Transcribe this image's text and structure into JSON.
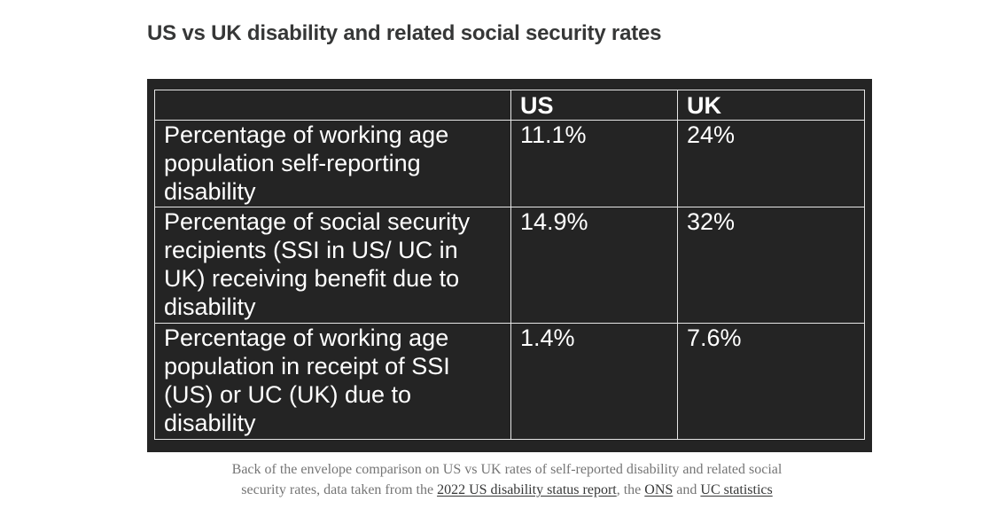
{
  "heading": "US vs UK disability and related social security rates",
  "table": {
    "headers": [
      "",
      "US",
      "UK"
    ],
    "rows": [
      {
        "label": "Percentage of working age population self-reporting disability",
        "us": "11.1%",
        "uk": "24%"
      },
      {
        "label": "Percentage of social security recipients (SSI in US/ UC in UK) receiving benefit due to disability",
        "us": "14.9%",
        "uk": "32%"
      },
      {
        "label": "Percentage of working age population in receipt of SSI (US) or UC (UK) due to disability",
        "us": "1.4%",
        "uk": "7.6%"
      }
    ]
  },
  "caption": {
    "text_before": "Back of the envelope comparison on US vs UK rates of self-reported disability and related social security rates, data taken from the ",
    "link1": "2022 US disability status report",
    "text_middle1": ", the ",
    "link2": "ONS",
    "text_middle2": " and ",
    "link3": "UC statistics"
  },
  "colors": {
    "table_background": "#242424",
    "heading": "#363737",
    "caption": "#757575"
  }
}
